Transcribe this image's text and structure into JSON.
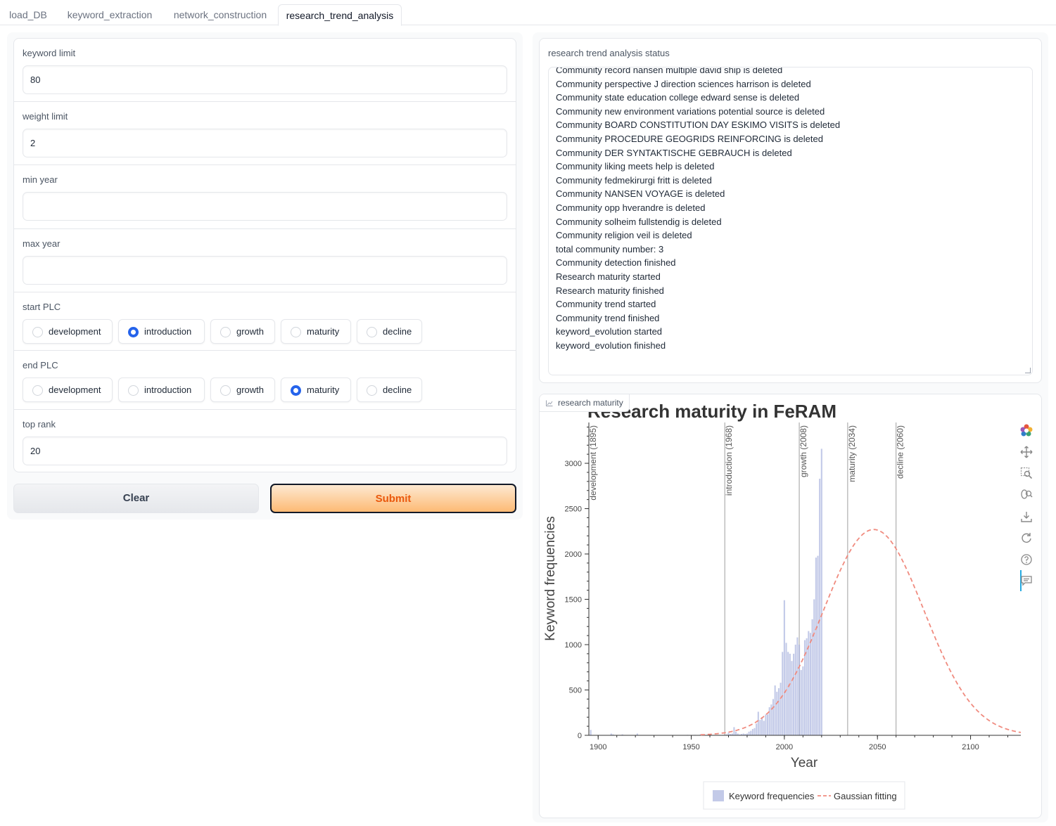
{
  "tabs": [
    {
      "label": "load_DB"
    },
    {
      "label": "keyword_extraction"
    },
    {
      "label": "network_construction"
    },
    {
      "label": "research_trend_analysis"
    }
  ],
  "form": {
    "keyword_limit": {
      "label": "keyword limit",
      "value": "80"
    },
    "weight_limit": {
      "label": "weight limit",
      "value": "2"
    },
    "min_year": {
      "label": "min year",
      "value": ""
    },
    "max_year": {
      "label": "max year",
      "value": ""
    },
    "start_plc": {
      "label": "start PLC",
      "options": [
        "development",
        "introduction",
        "growth",
        "maturity",
        "decline"
      ],
      "selected": "introduction"
    },
    "end_plc": {
      "label": "end PLC",
      "options": [
        "development",
        "introduction",
        "growth",
        "maturity",
        "decline"
      ],
      "selected": "maturity"
    },
    "top_rank": {
      "label": "top rank",
      "value": "20"
    }
  },
  "buttons": {
    "clear": "Clear",
    "submit": "Submit"
  },
  "status": {
    "label": "research trend analysis status",
    "lines": [
      "Community record nansen multiple david ship is deleted",
      "Community perspective J direction sciences harrison is deleted",
      "Community state education college edward sense is deleted",
      "Community new environment variations potential source is deleted",
      "Community BOARD CONSTITUTION DAY ESKIMO VISITS is deleted",
      "Community PROCEDURE GEOGRIDS REINFORCING is deleted",
      "Community DER SYNTAKTISCHE GEBRAUCH is deleted",
      "Community liking meets help is deleted",
      "Community fedmekirurgi fritt is deleted",
      "Community NANSEN VOYAGE is deleted",
      "Community opp hverandre is deleted",
      "Community solheim fullstendig is deleted",
      "Community religion veil is deleted",
      "total community number:  3",
      "Community detection finished",
      "Research maturity started",
      "Research maturity finished",
      "Community trend started",
      "Community trend finished",
      "keyword_evolution started",
      "keyword_evolution finished"
    ]
  },
  "plot": {
    "label": "research maturity",
    "toolbar": [
      "bokeh-logo-icon",
      "pan-icon",
      "box-zoom-icon",
      "wheel-zoom-icon",
      "save-icon",
      "reset-icon",
      "help-icon",
      "hover-icon"
    ]
  },
  "chart_data": {
    "type": "bar",
    "title": "Research maturity in FeRAM",
    "xlabel": "Year",
    "ylabel": "Keyword frequencies",
    "xlim": [
      1895,
      2127
    ],
    "ylim": [
      0,
      3450
    ],
    "xticks": [
      1900,
      1950,
      2000,
      2050,
      2100
    ],
    "yticks": [
      0,
      500,
      1000,
      1500,
      2000,
      2500,
      3000
    ],
    "bar_color": "#aab4de",
    "fit_color": "#f08b7f",
    "legend_position": "bottom-center",
    "bars": {
      "x": [
        1896,
        1907,
        1908,
        1913,
        1921,
        1948,
        1952,
        1955,
        1956,
        1957,
        1960,
        1965,
        1967,
        1969,
        1970,
        1971,
        1972,
        1973,
        1974,
        1975,
        1976,
        1977,
        1978,
        1979,
        1980,
        1981,
        1982,
        1983,
        1984,
        1985,
        1986,
        1987,
        1988,
        1989,
        1990,
        1991,
        1992,
        1993,
        1994,
        1995,
        1996,
        1997,
        1998,
        1999,
        2000,
        2001,
        2002,
        2003,
        2004,
        2005,
        2006,
        2007,
        2008,
        2009,
        2010,
        2011,
        2012,
        2013,
        2014,
        2015,
        2016,
        2017,
        2018,
        2019,
        2020,
        2021,
        2022
      ],
      "y": [
        60,
        20,
        10,
        10,
        20,
        5,
        5,
        10,
        15,
        10,
        5,
        5,
        5,
        10,
        30,
        15,
        20,
        90,
        40,
        20,
        10,
        15,
        20,
        15,
        20,
        40,
        50,
        70,
        80,
        130,
        260,
        170,
        200,
        160,
        230,
        230,
        310,
        340,
        400,
        550,
        480,
        520,
        580,
        920,
        1490,
        1020,
        920,
        900,
        820,
        900,
        1000,
        1080,
        1000,
        720,
        760,
        1050,
        1070,
        1150,
        1130,
        1280,
        1500,
        1960,
        1980,
        2830,
        3160,
        0,
        0
      ]
    },
    "gaussian_fit": {
      "name": "Gaussian fitting",
      "peak": 2270,
      "center": 2048,
      "sigma": 27
    },
    "phases": [
      {
        "label": "development (1895)",
        "year": 1895
      },
      {
        "label": "introduction (1968)",
        "year": 1968
      },
      {
        "label": "growth (2008)",
        "year": 2008
      },
      {
        "label": "maturity (2034)",
        "year": 2034
      },
      {
        "label": "decline (2060)",
        "year": 2060
      }
    ],
    "legend": [
      "Keyword frequencies",
      "Gaussian fitting"
    ]
  }
}
